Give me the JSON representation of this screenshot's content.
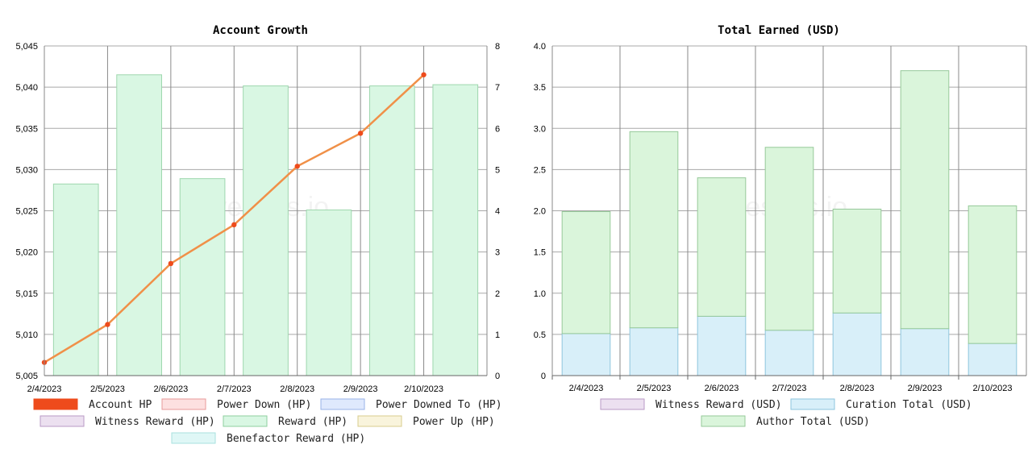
{
  "watermark": "hivestats.io",
  "chart_data": [
    {
      "type": "bar",
      "title": "Account Growth",
      "categories": [
        "2/4/2023",
        "2/5/2023",
        "2/6/2023",
        "2/7/2023",
        "2/8/2023",
        "2/9/2023",
        "2/10/2023"
      ],
      "y_left": {
        "range": [
          5005,
          5045
        ],
        "ticks": [
          "5,005",
          "5,010",
          "5,015",
          "5,020",
          "5,025",
          "5,030",
          "5,035",
          "5,040",
          "5,045"
        ]
      },
      "y_right": {
        "range": [
          0,
          8
        ],
        "ticks": [
          "0",
          "1",
          "2",
          "3",
          "4",
          "5",
          "6",
          "7",
          "8"
        ]
      },
      "series": [
        {
          "name": "Account HP",
          "kind": "line",
          "axis": "left",
          "color": "#ee4b1c",
          "line_color": "#f09048",
          "values": [
            5006.6,
            5011.2,
            5018.6,
            5023.3,
            5030.4,
            5034.4,
            5041.5
          ]
        },
        {
          "name": "Reward (HP)",
          "kind": "bar",
          "axis": "right",
          "fill": "#d9f7e3",
          "stroke": "#9ed7ae",
          "values": [
            4.65,
            7.3,
            4.78,
            7.03,
            4.02,
            7.03,
            7.06
          ]
        }
      ],
      "legend": [
        {
          "label": "Account HP",
          "fill": "#ee4b1c",
          "stroke": "#ee4b1c"
        },
        {
          "label": "Power Down (HP)",
          "fill": "#fde0e0",
          "stroke": "#e89a9a"
        },
        {
          "label": "Power Downed To (HP)",
          "fill": "#dfe9fd",
          "stroke": "#9ab3e8"
        },
        {
          "label": "Witness Reward (HP)",
          "fill": "#ece0f0",
          "stroke": "#b99ac6"
        },
        {
          "label": "Reward (HP)",
          "fill": "#d9f7e3",
          "stroke": "#8fcf9f"
        },
        {
          "label": "Power Up (HP)",
          "fill": "#f9f4dc",
          "stroke": "#d8cc8e"
        },
        {
          "label": "Benefactor Reward (HP)",
          "fill": "#dff7f6",
          "stroke": "#a8e2df"
        }
      ],
      "legend_placement": "bottom",
      "grid": true
    },
    {
      "type": "bar",
      "stacked": true,
      "title": "Total Earned (USD)",
      "categories": [
        "2/4/2023",
        "2/5/2023",
        "2/6/2023",
        "2/7/2023",
        "2/8/2023",
        "2/9/2023",
        "2/10/2023"
      ],
      "y_left": {
        "range": [
          0,
          4
        ],
        "ticks": [
          "0",
          "0.5",
          "1.0",
          "1.5",
          "2.0",
          "2.5",
          "3.0",
          "3.5",
          "4.0"
        ]
      },
      "series": [
        {
          "name": "Curation Total (USD)",
          "kind": "bar",
          "fill": "#d8eff9",
          "stroke": "#8ec6de",
          "values": [
            0.51,
            0.58,
            0.72,
            0.55,
            0.76,
            0.57,
            0.39
          ]
        },
        {
          "name": "Author Total (USD)",
          "kind": "bar",
          "fill": "#daf5db",
          "stroke": "#96c99a",
          "values": [
            1.48,
            2.38,
            1.68,
            2.22,
            1.26,
            3.13,
            1.67
          ]
        }
      ],
      "legend": [
        {
          "label": "Witness Reward (USD)",
          "fill": "#ece0f0",
          "stroke": "#b99ac6"
        },
        {
          "label": "Curation Total (USD)",
          "fill": "#d8eff9",
          "stroke": "#8ec6de"
        },
        {
          "label": "Author Total (USD)",
          "fill": "#daf5db",
          "stroke": "#96c99a"
        }
      ],
      "legend_placement": "bottom",
      "grid": true
    }
  ]
}
